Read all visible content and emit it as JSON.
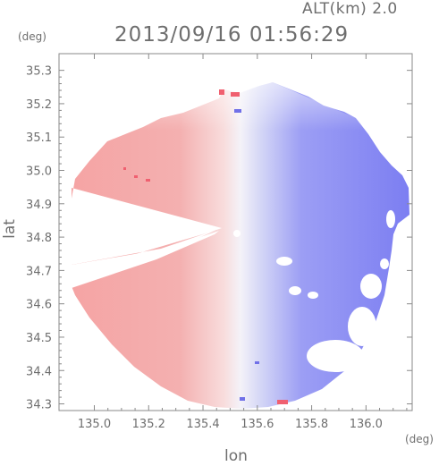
{
  "header": {
    "altitude_label": "ALT(km) 2.0",
    "datetime": "2013/09/16 01:56:29"
  },
  "axes": {
    "y_unit": "(deg)",
    "x_unit": "(deg)",
    "y_title": "lat",
    "x_title": "lon"
  },
  "chart_data": {
    "type": "heatmap",
    "x_range": [
      134.87,
      136.17
    ],
    "y_range": [
      34.28,
      35.35
    ],
    "x_ticks": [
      "135.0",
      "135.2",
      "135.4",
      "135.6",
      "135.8",
      "136.0"
    ],
    "x_tick_values": [
      135.0,
      135.2,
      135.4,
      135.6,
      135.8,
      136.0
    ],
    "y_ticks": [
      "35.3",
      "35.2",
      "35.1",
      "35.0",
      "34.9",
      "34.8",
      "34.7",
      "34.6",
      "34.5",
      "34.4",
      "34.3"
    ],
    "y_tick_values": [
      35.3,
      35.2,
      35.1,
      35.0,
      34.9,
      34.8,
      34.7,
      34.6,
      34.5,
      34.4,
      34.3
    ],
    "radar_center": [
      135.52,
      34.815
    ],
    "colors": {
      "approaching": "#7b7cf2",
      "receding": "#f4a0a0",
      "zero": "#f2f2f8"
    },
    "grid": true
  }
}
